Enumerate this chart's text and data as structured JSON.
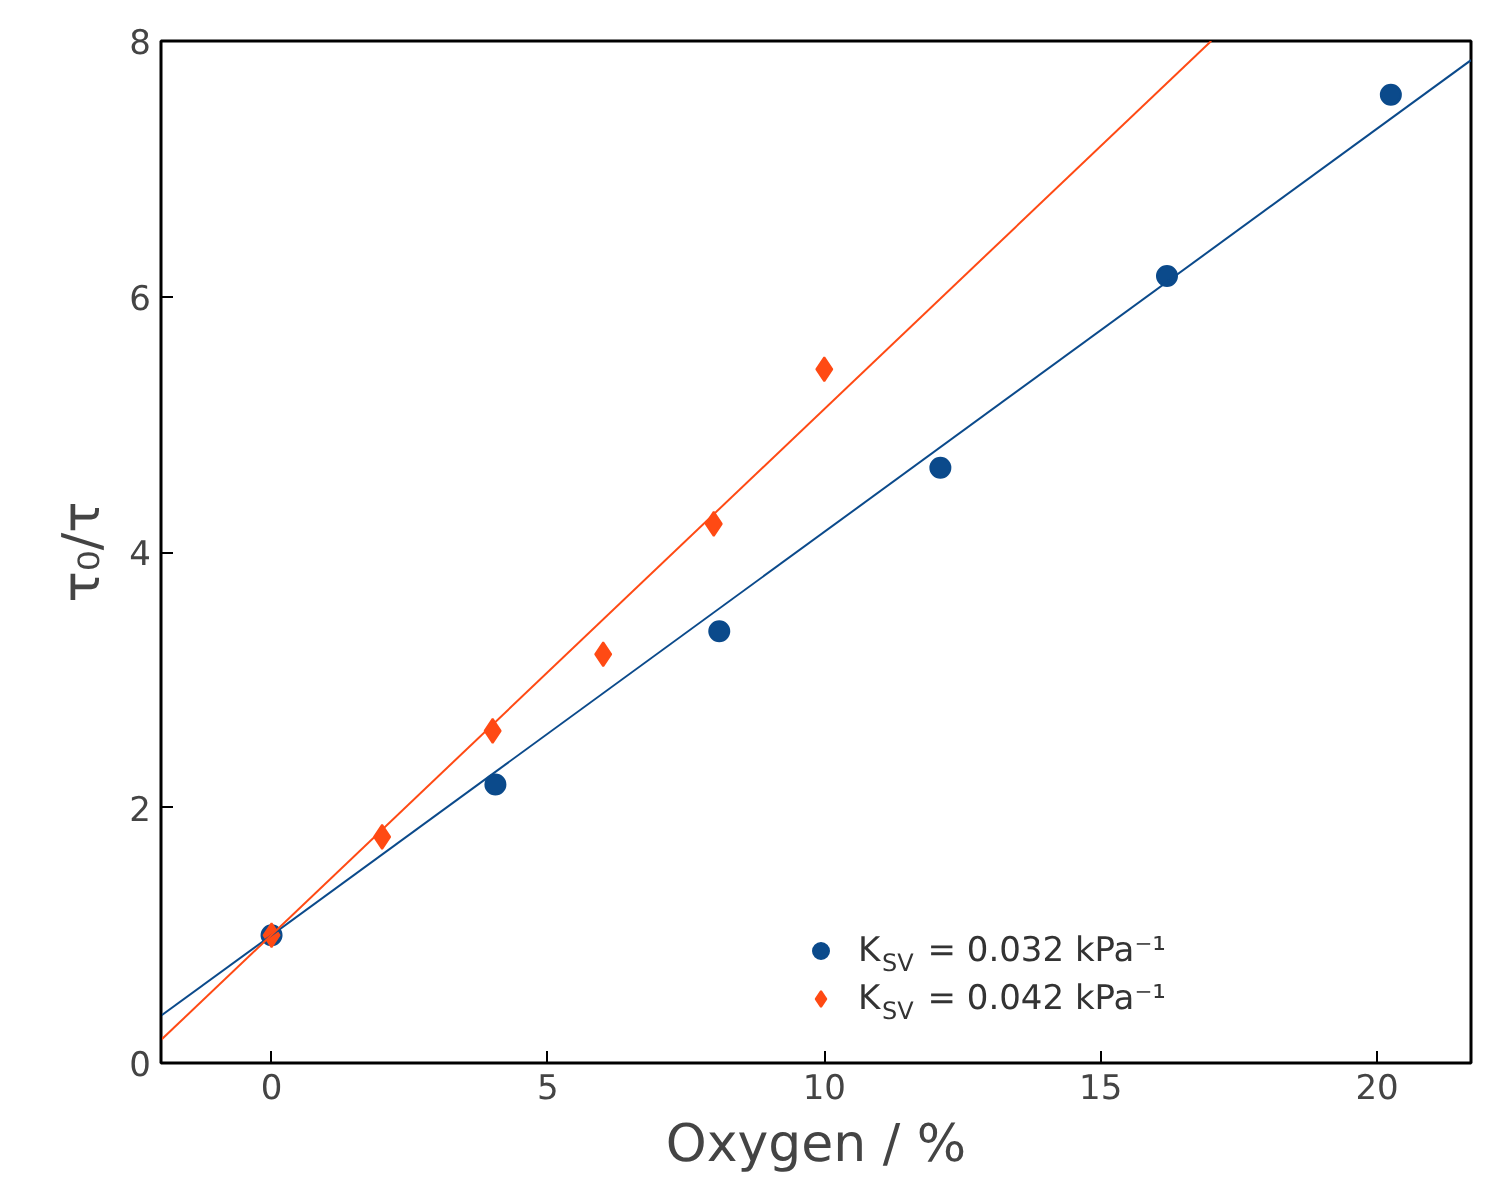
{
  "chart_data": {
    "type": "scatter",
    "xlabel": "Oxygen / %",
    "ylabel": "τ₀/τ",
    "xlim": [
      -2,
      21.7
    ],
    "ylim": [
      0,
      8
    ],
    "xticks": [
      0,
      5,
      10,
      15,
      20
    ],
    "yticks": [
      0,
      2,
      4,
      6,
      8
    ],
    "grid": false,
    "legend": "bottom right",
    "series": [
      {
        "name": "K$_{SV}$ = 0.032 kPa⁻¹",
        "color": "#0b4a8b",
        "marker": "circle",
        "x": [
          0,
          4.05,
          8.1,
          12.1,
          16.2,
          20.25
        ],
        "values": [
          1.0,
          2.18,
          3.38,
          4.66,
          6.16,
          7.58
        ]
      },
      {
        "name": "K$_{SV}$ = 0.042 kPa⁻¹",
        "color": "#ff4a14",
        "marker": "diamond",
        "x": [
          0,
          2,
          4,
          6,
          8,
          10
        ],
        "values": [
          1.0,
          1.77,
          2.6,
          3.2,
          4.22,
          5.43
        ]
      },
      {
        "type": "line",
        "color": "#0b4a8b",
        "x": [
          -2,
          21.7
        ],
        "values": [
          0.37,
          7.85
        ]
      },
      {
        "type": "line",
        "color": "#ff4a14",
        "x": [
          -2,
          17
        ],
        "values": [
          0.18,
          8
        ]
      }
    ]
  }
}
